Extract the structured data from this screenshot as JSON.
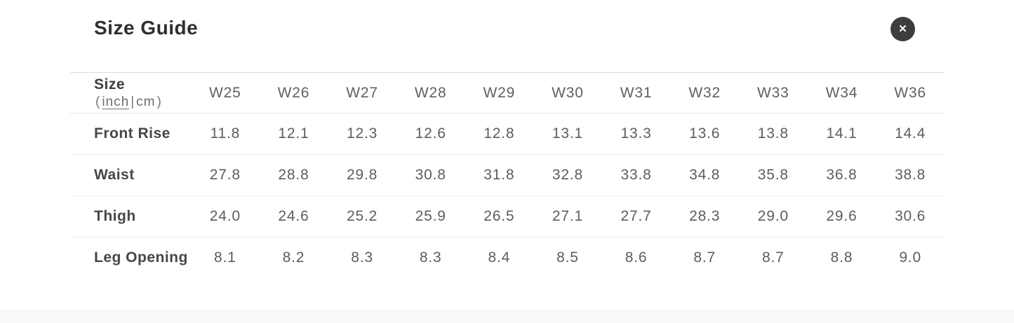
{
  "modal": {
    "title": "Size Guide",
    "close_icon": "✕"
  },
  "table": {
    "size_label": "Size",
    "unit_open": "(",
    "unit_inch": "inch",
    "unit_sep": "|",
    "unit_cm": "cm",
    "unit_close": ")",
    "active_unit": "inch",
    "columns": [
      "W25",
      "W26",
      "W27",
      "W28",
      "W29",
      "W30",
      "W31",
      "W32",
      "W33",
      "W34",
      "W36"
    ],
    "rows": [
      {
        "label": "Front Rise",
        "values": [
          "11.8",
          "12.1",
          "12.3",
          "12.6",
          "12.8",
          "13.1",
          "13.3",
          "13.6",
          "13.8",
          "14.1",
          "14.4"
        ]
      },
      {
        "label": "Waist",
        "values": [
          "27.8",
          "28.8",
          "29.8",
          "30.8",
          "31.8",
          "32.8",
          "33.8",
          "34.8",
          "35.8",
          "36.8",
          "38.8"
        ]
      },
      {
        "label": "Thigh",
        "values": [
          "24.0",
          "24.6",
          "25.2",
          "25.9",
          "26.5",
          "27.1",
          "27.7",
          "28.3",
          "29.0",
          "29.6",
          "30.6"
        ]
      },
      {
        "label": "Leg Opening",
        "values": [
          "8.1",
          "8.2",
          "8.3",
          "8.3",
          "8.4",
          "8.5",
          "8.6",
          "8.7",
          "8.7",
          "8.8",
          "9.0"
        ]
      }
    ]
  },
  "colors": {
    "close_button_bg": "#3d3d3d",
    "title_text": "#2f2f2f",
    "body_text": "#5d5d5d",
    "divider": "#e4e4e4",
    "modal_bg": "#ffffff"
  }
}
